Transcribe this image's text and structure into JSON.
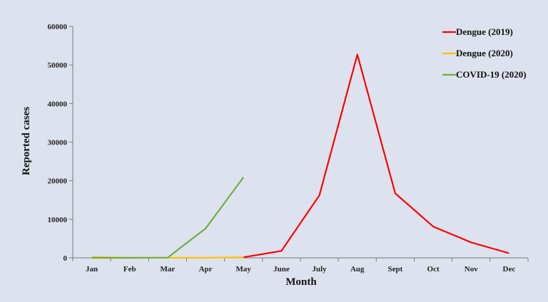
{
  "chart_data": {
    "type": "line",
    "xlabel": "Month",
    "ylabel": "Reported cases",
    "ylim": [
      0,
      60000
    ],
    "yticks": [
      0,
      10000,
      20000,
      30000,
      40000,
      50000,
      60000
    ],
    "categories": [
      "Jan",
      "Feb",
      "Mar",
      "Apr",
      "May",
      "June",
      "July",
      "Aug",
      "Sept",
      "Oct",
      "Nov",
      "Dec"
    ],
    "grid": false,
    "legend_position": "top-right",
    "series": [
      {
        "name": "Dengue (2019)",
        "color": "#ff0000",
        "values": [
          null,
          null,
          null,
          null,
          150,
          1800,
          16200,
          52700,
          16700,
          8100,
          4000,
          1200
        ]
      },
      {
        "name": "Dengue (2020)",
        "color": "#ffc000",
        "values": [
          199,
          45,
          27,
          25,
          150,
          null,
          null,
          null,
          null,
          null,
          null,
          null
        ]
      },
      {
        "name": "COVID-19 (2020)",
        "color": "#70ad47",
        "values": [
          0,
          0,
          51,
          7600,
          20900,
          null,
          null,
          null,
          null,
          null,
          null,
          null
        ]
      }
    ]
  }
}
